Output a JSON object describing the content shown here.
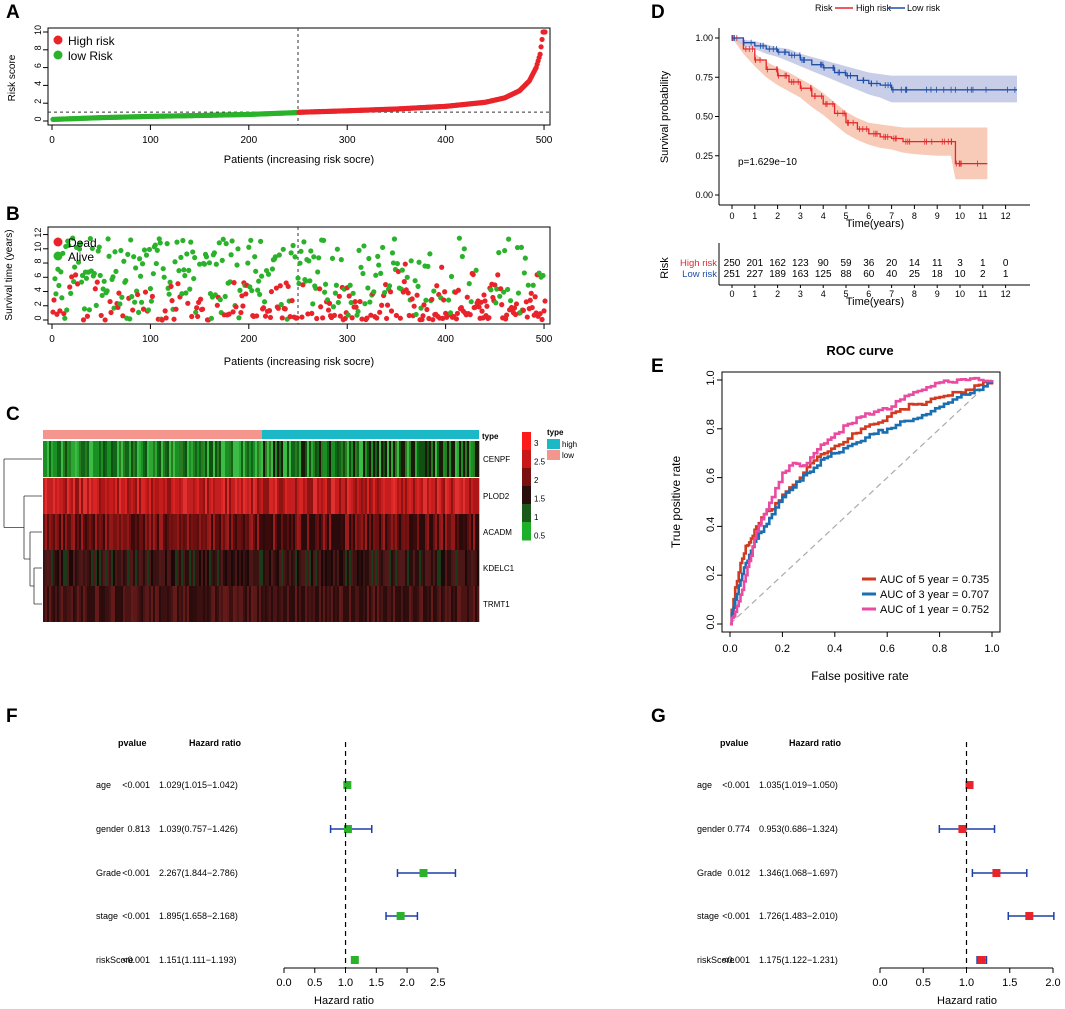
{
  "panel_labels": {
    "A": "A",
    "B": "B",
    "C": "C",
    "D": "D",
    "E": "E",
    "F": "F",
    "G": "G"
  },
  "chart_data": [
    {
      "id": "A",
      "type": "scatter",
      "title": "",
      "xlabel": "Patients (increasing risk socre)",
      "ylabel": "Risk score",
      "xlim": [
        0,
        502
      ],
      "ylim": [
        0,
        10
      ],
      "xticks": [
        0,
        100,
        200,
        300,
        400,
        500
      ],
      "yticks": [
        0,
        2,
        4,
        6,
        8,
        10
      ],
      "cutoff_patient": 250,
      "cutoff_score": 1.0,
      "legend": [
        {
          "label": "High risk",
          "color": "#e8242a"
        },
        {
          "label": "low Risk",
          "color": "#2bb22b"
        }
      ],
      "series": [
        {
          "name": "low Risk",
          "color": "#2bb22b",
          "x_range": [
            1,
            250
          ],
          "curve": [
            [
              1,
              0.18
            ],
            [
              50,
              0.38
            ],
            [
              100,
              0.52
            ],
            [
              150,
              0.62
            ],
            [
              200,
              0.74
            ],
            [
              250,
              0.95
            ]
          ]
        },
        {
          "name": "High risk",
          "color": "#e8242a",
          "x_range": [
            251,
            501
          ],
          "curve": [
            [
              251,
              0.98
            ],
            [
              300,
              1.15
            ],
            [
              350,
              1.35
            ],
            [
              400,
              1.65
            ],
            [
              440,
              2.1
            ],
            [
              460,
              2.6
            ],
            [
              475,
              3.4
            ],
            [
              485,
              4.5
            ],
            [
              492,
              6.0
            ],
            [
              496,
              7.5
            ],
            [
              499,
              10.0
            ]
          ]
        }
      ]
    },
    {
      "id": "B",
      "type": "scatter",
      "xlabel": "Patients (increasing risk socre)",
      "ylabel": "Survival time (years)",
      "xlim": [
        0,
        502
      ],
      "ylim": [
        0,
        12.5
      ],
      "xticks": [
        0,
        100,
        200,
        300,
        400,
        500
      ],
      "yticks": [
        0,
        2,
        4,
        6,
        8,
        10,
        12
      ],
      "cutoff_patient": 250,
      "legend": [
        {
          "label": "Dead",
          "color": "#e8242a"
        },
        {
          "label": "Alive",
          "color": "#2bb22b"
        }
      ],
      "n_points": 501,
      "note": "scattered survival times 0-12 years; dead patients more frequent among high-risk"
    },
    {
      "id": "C",
      "type": "heatmap",
      "genes": [
        "CENPF",
        "PLOD2",
        "ACADM",
        "KDELC1",
        "TRMT1"
      ],
      "annotation_label": "type",
      "groups": [
        {
          "label": "high",
          "color": "#1bb8c8"
        },
        {
          "label": "low",
          "color": "#f4958e"
        }
      ],
      "colorbar_ticks": [
        "3",
        "2.5",
        "2",
        "1.5",
        "1",
        "0.5"
      ],
      "row_base_colors": [
        "#1fa02a",
        "#cc1e1e",
        "#8a1414",
        "#2a0e0e",
        "#3a1010"
      ]
    },
    {
      "id": "D",
      "type": "line",
      "xlabel": "Time(years)",
      "ylabel": "Survival probability",
      "xlim": [
        0,
        12.5
      ],
      "ylim": [
        0,
        1
      ],
      "xticks": [
        0,
        1,
        2,
        3,
        4,
        5,
        6,
        7,
        8,
        9,
        10,
        11,
        12
      ],
      "yticks": [
        "0.00",
        "0.25",
        "0.50",
        "0.75",
        "1.00"
      ],
      "pvalue": "p=1.629e−10",
      "legend_title": "Risk",
      "series": [
        {
          "name": "High risk",
          "color": "#e8242a",
          "fill": "#f6b8a0",
          "x": [
            0,
            0.5,
            1,
            1.5,
            2,
            2.5,
            3,
            3.5,
            4,
            4.5,
            5,
            5.5,
            6,
            6.5,
            7,
            7.5,
            8,
            9,
            9.6,
            9.8,
            10,
            11.2
          ],
          "y": [
            1.0,
            0.93,
            0.86,
            0.8,
            0.76,
            0.72,
            0.68,
            0.63,
            0.58,
            0.52,
            0.46,
            0.42,
            0.39,
            0.37,
            0.36,
            0.34,
            0.34,
            0.34,
            0.34,
            0.2,
            0.2,
            0.2
          ],
          "lo": [
            1.0,
            0.9,
            0.82,
            0.75,
            0.7,
            0.66,
            0.62,
            0.56,
            0.51,
            0.45,
            0.39,
            0.35,
            0.32,
            0.3,
            0.29,
            0.27,
            0.26,
            0.25,
            0.25,
            0.1,
            0.1,
            0.1
          ],
          "hi": [
            1.0,
            0.96,
            0.9,
            0.85,
            0.81,
            0.78,
            0.74,
            0.7,
            0.65,
            0.59,
            0.53,
            0.49,
            0.46,
            0.45,
            0.44,
            0.43,
            0.43,
            0.43,
            0.43,
            0.43,
            0.43,
            0.43
          ]
        },
        {
          "name": "Low risk",
          "color": "#1f4fa8",
          "fill": "#b5bde0",
          "x": [
            0,
            0.5,
            1,
            1.5,
            2,
            2.5,
            3,
            3.5,
            4,
            4.5,
            5,
            5.5,
            6,
            6.5,
            7,
            7.5,
            8,
            9,
            10,
            11,
            12.5
          ],
          "y": [
            1.0,
            0.97,
            0.95,
            0.93,
            0.91,
            0.89,
            0.86,
            0.83,
            0.81,
            0.78,
            0.76,
            0.73,
            0.71,
            0.7,
            0.67,
            0.67,
            0.67,
            0.67,
            0.67,
            0.67,
            0.67
          ],
          "lo": [
            1.0,
            0.95,
            0.93,
            0.9,
            0.88,
            0.85,
            0.82,
            0.79,
            0.76,
            0.73,
            0.7,
            0.67,
            0.64,
            0.62,
            0.59,
            0.59,
            0.59,
            0.59,
            0.59,
            0.59,
            0.59
          ],
          "hi": [
            1.0,
            0.99,
            0.98,
            0.96,
            0.94,
            0.93,
            0.9,
            0.88,
            0.86,
            0.84,
            0.82,
            0.8,
            0.78,
            0.77,
            0.76,
            0.76,
            0.76,
            0.76,
            0.76,
            0.76,
            0.76
          ]
        }
      ],
      "risk_table": {
        "title": "Risk",
        "xlabel": "Time(years)",
        "rows": [
          {
            "label": "High risk",
            "color": "#e8242a",
            "values": [
              "250",
              "201",
              "162",
              "123",
              "90",
              "59",
              "36",
              "20",
              "14",
              "11",
              "3",
              "1",
              "0"
            ]
          },
          {
            "label": "Low risk",
            "color": "#1f4fa8",
            "values": [
              "251",
              "227",
              "189",
              "163",
              "125",
              "88",
              "60",
              "40",
              "25",
              "18",
              "10",
              "2",
              "1"
            ]
          }
        ]
      }
    },
    {
      "id": "E",
      "type": "line",
      "title": "ROC curve",
      "xlabel": "False positive rate",
      "ylabel": "True positive rate",
      "xlim": [
        0,
        1
      ],
      "ylim": [
        0,
        1
      ],
      "xticks": [
        "0.0",
        "0.2",
        "0.4",
        "0.6",
        "0.8",
        "1.0"
      ],
      "yticks": [
        "0.0",
        "0.2",
        "0.4",
        "0.6",
        "0.8",
        "1.0"
      ],
      "series": [
        {
          "name": "AUC of 5 year =  0.735",
          "color": "#d23a20",
          "x": [
            0,
            0.02,
            0.04,
            0.06,
            0.08,
            0.1,
            0.13,
            0.16,
            0.2,
            0.24,
            0.28,
            0.32,
            0.36,
            0.4,
            0.45,
            0.5,
            0.55,
            0.6,
            0.65,
            0.7,
            0.75,
            0.8,
            0.85,
            0.9,
            0.95,
            1.0
          ],
          "y": [
            0,
            0.15,
            0.25,
            0.32,
            0.35,
            0.4,
            0.45,
            0.47,
            0.53,
            0.57,
            0.62,
            0.67,
            0.7,
            0.73,
            0.76,
            0.8,
            0.82,
            0.85,
            0.88,
            0.9,
            0.91,
            0.93,
            0.95,
            0.96,
            0.98,
            1.0
          ]
        },
        {
          "name": "AUC of 3 year =  0.707",
          "color": "#1a6fb0",
          "x": [
            0,
            0.02,
            0.04,
            0.06,
            0.08,
            0.1,
            0.13,
            0.16,
            0.2,
            0.24,
            0.28,
            0.32,
            0.36,
            0.4,
            0.45,
            0.5,
            0.55,
            0.6,
            0.65,
            0.7,
            0.75,
            0.8,
            0.85,
            0.9,
            0.95,
            1.0
          ],
          "y": [
            0,
            0.1,
            0.18,
            0.25,
            0.3,
            0.35,
            0.4,
            0.45,
            0.52,
            0.56,
            0.61,
            0.64,
            0.68,
            0.7,
            0.73,
            0.75,
            0.78,
            0.8,
            0.83,
            0.84,
            0.86,
            0.89,
            0.92,
            0.94,
            0.96,
            1.0
          ]
        },
        {
          "name": "AUC of 1 year =  0.752",
          "color": "#ea4aa0",
          "x": [
            0,
            0.02,
            0.04,
            0.06,
            0.08,
            0.1,
            0.13,
            0.16,
            0.2,
            0.24,
            0.28,
            0.32,
            0.36,
            0.4,
            0.45,
            0.5,
            0.55,
            0.6,
            0.65,
            0.7,
            0.75,
            0.8,
            0.85,
            0.9,
            0.95,
            1.0
          ],
          "y": [
            0,
            0.05,
            0.12,
            0.2,
            0.28,
            0.38,
            0.45,
            0.52,
            0.62,
            0.66,
            0.65,
            0.7,
            0.74,
            0.78,
            0.82,
            0.85,
            0.87,
            0.88,
            0.92,
            0.95,
            0.97,
            0.99,
            0.99,
            1.0,
            1.0,
            1.0
          ]
        }
      ],
      "diagonal": true
    },
    {
      "id": "F",
      "type": "forest",
      "header_pvalue": "pvalue",
      "header_hr": "Hazard ratio",
      "xlabel": "Hazard ratio",
      "xlim": [
        0,
        2.6
      ],
      "xticks": [
        "0.0",
        "0.5",
        "1.0",
        "1.5",
        "2.0",
        "2.5"
      ],
      "marker_color": "#2bb22b",
      "rows": [
        {
          "var": "age",
          "pvalue": "<0.001",
          "hr_text": "1.029(1.015−1.042)",
          "hr": 1.029,
          "lo": 1.015,
          "hi": 1.042
        },
        {
          "var": "gender",
          "pvalue": "0.813",
          "hr_text": "1.039(0.757−1.426)",
          "hr": 1.039,
          "lo": 0.757,
          "hi": 1.426
        },
        {
          "var": "Grade",
          "pvalue": "<0.001",
          "hr_text": "2.267(1.844−2.786)",
          "hr": 2.267,
          "lo": 1.844,
          "hi": 2.786
        },
        {
          "var": "stage",
          "pvalue": "<0.001",
          "hr_text": "1.895(1.658−2.168)",
          "hr": 1.895,
          "lo": 1.658,
          "hi": 2.168
        },
        {
          "var": "riskScore",
          "pvalue": "<0.001",
          "hr_text": "1.151(1.111−1.193)",
          "hr": 1.151,
          "lo": 1.111,
          "hi": 1.193
        }
      ]
    },
    {
      "id": "G",
      "type": "forest",
      "header_pvalue": "pvalue",
      "header_hr": "Hazard ratio",
      "xlabel": "Hazard ratio",
      "xlim": [
        0,
        2.0
      ],
      "xticks": [
        "0.0",
        "0.5",
        "1.0",
        "1.5",
        "2.0"
      ],
      "marker_color": "#e8242a",
      "rows": [
        {
          "var": "age",
          "pvalue": "<0.001",
          "hr_text": "1.035(1.019−1.050)",
          "hr": 1.035,
          "lo": 1.019,
          "hi": 1.05
        },
        {
          "var": "gender",
          "pvalue": "0.774",
          "hr_text": "0.953(0.686−1.324)",
          "hr": 0.953,
          "lo": 0.686,
          "hi": 1.324
        },
        {
          "var": "Grade",
          "pvalue": "0.012",
          "hr_text": "1.346(1.068−1.697)",
          "hr": 1.346,
          "lo": 1.068,
          "hi": 1.697
        },
        {
          "var": "stage",
          "pvalue": "<0.001",
          "hr_text": "1.726(1.483−2.010)",
          "hr": 1.726,
          "lo": 1.483,
          "hi": 2.01
        },
        {
          "var": "riskScore",
          "pvalue": "<0.001",
          "hr_text": "1.175(1.122−1.231)",
          "hr": 1.175,
          "lo": 1.122,
          "hi": 1.231
        }
      ]
    }
  ]
}
